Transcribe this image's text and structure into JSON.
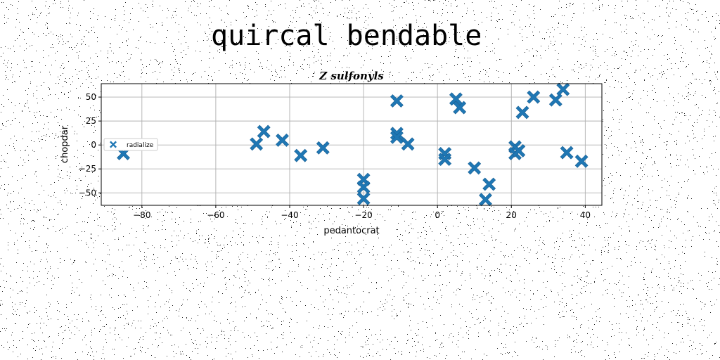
{
  "page": {
    "title": "quircal bendable"
  },
  "colors": {
    "background": "#ffffff",
    "marker": "#1f77b4",
    "grid": "#b0b0b0",
    "noise": "#000000"
  },
  "chart_data": {
    "type": "scatter",
    "title": "Z sulfonyls",
    "xlabel": "pedantocrat",
    "ylabel": "chopdar",
    "xlim": [
      -91,
      44.5
    ],
    "ylim": [
      -63,
      64
    ],
    "xticks": [
      -80,
      -60,
      -40,
      -20,
      0,
      20,
      40
    ],
    "yticks": [
      -50,
      -25,
      0,
      25,
      50
    ],
    "grid": true,
    "marker": "X",
    "legend": {
      "position": "center-left",
      "entries": [
        "radialize"
      ]
    },
    "series": [
      {
        "name": "radialize",
        "color": "#1f77b4",
        "points": [
          [
            -85,
            -9
          ],
          [
            -49,
            1
          ],
          [
            -47,
            14
          ],
          [
            -42,
            5
          ],
          [
            -37,
            -11
          ],
          [
            -31,
            -3
          ],
          [
            -20,
            -36
          ],
          [
            -20,
            -44
          ],
          [
            -20,
            -56
          ],
          [
            -11,
            46
          ],
          [
            -11,
            12
          ],
          [
            -11,
            8
          ],
          [
            -8,
            1
          ],
          [
            2,
            -9
          ],
          [
            2,
            -15
          ],
          [
            5,
            48
          ],
          [
            6,
            39
          ],
          [
            10,
            -24
          ],
          [
            13,
            -57
          ],
          [
            14,
            -41
          ],
          [
            21,
            -2
          ],
          [
            21,
            -9
          ],
          [
            22,
            -6
          ],
          [
            23,
            34
          ],
          [
            26,
            50
          ],
          [
            32,
            47
          ],
          [
            34,
            58
          ],
          [
            35,
            -8
          ],
          [
            39,
            -17
          ]
        ]
      }
    ]
  }
}
